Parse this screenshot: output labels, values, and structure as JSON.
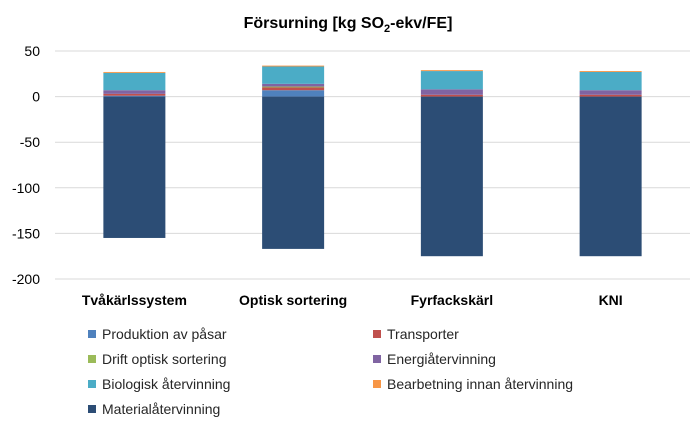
{
  "chart_data": {
    "type": "bar",
    "stacked": true,
    "title_main": "Försurning [kg SO",
    "title_sub": "2",
    "title_tail": "-ekv/FE]",
    "xlabel": "",
    "ylabel": "",
    "ylim": [
      -200,
      50
    ],
    "yticks": [
      50,
      0,
      -50,
      -100,
      -150,
      -200
    ],
    "ytick_labels": [
      "50",
      "0",
      "-50",
      "-100",
      "-150",
      "-200"
    ],
    "categories": [
      "Tvåkärlssystem",
      "Optisk sortering",
      "Fyrfackskärl",
      "KNI"
    ],
    "grid": true,
    "legend_position": "bottom",
    "series": [
      {
        "name": "Produktion av påsar",
        "color": "#4f81bd",
        "values": [
          1,
          7,
          0,
          0
        ]
      },
      {
        "name": "Transporter",
        "color": "#c0504d",
        "values": [
          2,
          3,
          2,
          2
        ]
      },
      {
        "name": "Drift optisk sortering",
        "color": "#9bbb59",
        "values": [
          0,
          1,
          0,
          0
        ]
      },
      {
        "name": "Energiåtervinning",
        "color": "#8064a2",
        "values": [
          4,
          3,
          6,
          5
        ]
      },
      {
        "name": "Biologisk återvinning",
        "color": "#4bacc6",
        "values": [
          19,
          19,
          20,
          20
        ]
      },
      {
        "name": "Bearbetning innan återvinning",
        "color": "#f79646",
        "values": [
          1,
          1,
          1,
          1
        ]
      },
      {
        "name": "Materialåtervinning",
        "color": "#2c4d75",
        "values": [
          -155,
          -167,
          -175,
          -175
        ]
      }
    ]
  }
}
